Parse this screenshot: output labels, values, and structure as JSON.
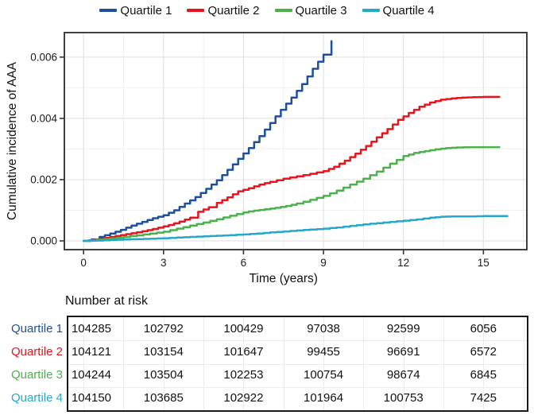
{
  "chart_data": {
    "type": "line",
    "title": "",
    "xlabel": "Time (years)",
    "ylabel": "Cumulative incidence of AAA",
    "xlim": [
      -0.72,
      16.63
    ],
    "ylim": [
      -0.000285,
      0.0068
    ],
    "x_ticks": [
      0,
      3,
      6,
      9,
      12,
      15
    ],
    "x_tick_labels": [
      "0",
      "3",
      "6",
      "9",
      "12",
      "15"
    ],
    "y_ticks": [
      0,
      0.002,
      0.004,
      0.006
    ],
    "y_tick_labels": [
      "0.000",
      "0.002",
      "0.004",
      "0.006"
    ],
    "grid": true,
    "legend_position": "top",
    "series": [
      {
        "name": "Quartile 1",
        "color": "#1c4f9f",
        "points": [
          [
            0,
            0
          ],
          [
            0.3,
            5e-05
          ],
          [
            0.6,
            0.00013
          ],
          [
            1,
            0.00024
          ],
          [
            1.4,
            0.00036
          ],
          [
            1.8,
            0.0005
          ],
          [
            2.2,
            0.00062
          ],
          [
            2.6,
            0.00074
          ],
          [
            3,
            0.00084
          ],
          [
            3.4,
            0.001
          ],
          [
            3.8,
            0.00122
          ],
          [
            4.2,
            0.00143
          ],
          [
            4.6,
            0.0017
          ],
          [
            5,
            0.00198
          ],
          [
            5.4,
            0.00232
          ],
          [
            5.8,
            0.00268
          ],
          [
            6.2,
            0.00303
          ],
          [
            6.6,
            0.00342
          ],
          [
            7,
            0.00385
          ],
          [
            7.4,
            0.00428
          ],
          [
            7.8,
            0.00468
          ],
          [
            8.2,
            0.00512
          ],
          [
            8.6,
            0.00562
          ],
          [
            9,
            0.00608
          ],
          [
            9.3,
            0.00652
          ]
        ]
      },
      {
        "name": "Quartile 2",
        "color": "#e8131d",
        "points": [
          [
            0,
            0
          ],
          [
            0.4,
            4e-05
          ],
          [
            0.8,
            0.0001
          ],
          [
            1.2,
            0.00016
          ],
          [
            1.6,
            0.00022
          ],
          [
            2,
            0.00028
          ],
          [
            2.4,
            0.00035
          ],
          [
            2.8,
            0.00043
          ],
          [
            3.2,
            0.00052
          ],
          [
            3.6,
            0.00063
          ],
          [
            4,
            0.00076
          ],
          [
            4.3,
            0.00095
          ],
          [
            4.7,
            0.0011
          ],
          [
            5,
            0.00124
          ],
          [
            5.4,
            0.00142
          ],
          [
            5.8,
            0.00162
          ],
          [
            6.2,
            0.00172
          ],
          [
            6.6,
            0.00184
          ],
          [
            7,
            0.00193
          ],
          [
            7.5,
            0.00203
          ],
          [
            8,
            0.00211
          ],
          [
            8.5,
            0.00219
          ],
          [
            9,
            0.00228
          ],
          [
            9.4,
            0.00242
          ],
          [
            9.8,
            0.00262
          ],
          [
            10.2,
            0.00285
          ],
          [
            10.6,
            0.0031
          ],
          [
            11,
            0.00338
          ],
          [
            11.4,
            0.00365
          ],
          [
            11.8,
            0.00395
          ],
          [
            12.2,
            0.00418
          ],
          [
            12.6,
            0.00438
          ],
          [
            13,
            0.00452
          ],
          [
            13.4,
            0.00461
          ],
          [
            13.8,
            0.00465
          ],
          [
            14.2,
            0.00468
          ],
          [
            14.6,
            0.00469
          ],
          [
            15,
            0.0047
          ],
          [
            15.6,
            0.0047
          ]
        ]
      },
      {
        "name": "Quartile 3",
        "color": "#4cb04c",
        "points": [
          [
            0,
            0
          ],
          [
            0.5,
            4e-05
          ],
          [
            1,
            8e-05
          ],
          [
            1.5,
            0.00013
          ],
          [
            2,
            0.00018
          ],
          [
            2.5,
            0.00024
          ],
          [
            3,
            0.0003
          ],
          [
            3.5,
            0.0004
          ],
          [
            4,
            0.0005
          ],
          [
            4.5,
            0.0006
          ],
          [
            5,
            0.00071
          ],
          [
            5.5,
            0.00082
          ],
          [
            6,
            0.00093
          ],
          [
            6.4,
            0.00099
          ],
          [
            6.8,
            0.00103
          ],
          [
            7.2,
            0.00108
          ],
          [
            7.6,
            0.00114
          ],
          [
            8,
            0.00122
          ],
          [
            8.5,
            0.00134
          ],
          [
            9,
            0.00147
          ],
          [
            9.5,
            0.00164
          ],
          [
            10,
            0.00184
          ],
          [
            10.5,
            0.00203
          ],
          [
            11,
            0.00226
          ],
          [
            11.5,
            0.00252
          ],
          [
            12,
            0.00277
          ],
          [
            12.4,
            0.00287
          ],
          [
            12.8,
            0.00293
          ],
          [
            13.2,
            0.00299
          ],
          [
            13.6,
            0.00303
          ],
          [
            14,
            0.00305
          ],
          [
            14.5,
            0.00306
          ],
          [
            15,
            0.00306
          ],
          [
            15.6,
            0.00306
          ]
        ]
      },
      {
        "name": "Quartile 4",
        "color": "#25a8c9",
        "points": [
          [
            0,
            0
          ],
          [
            0.5,
            1e-05
          ],
          [
            1,
            3e-05
          ],
          [
            1.5,
            5e-05
          ],
          [
            2,
            6e-05
          ],
          [
            2.5,
            7e-05
          ],
          [
            3,
            9e-05
          ],
          [
            3.5,
            0.00011
          ],
          [
            4,
            0.00013
          ],
          [
            4.5,
            0.00015
          ],
          [
            5,
            0.00017
          ],
          [
            5.5,
            0.00019
          ],
          [
            6,
            0.00021
          ],
          [
            6.5,
            0.00024
          ],
          [
            7,
            0.00028
          ],
          [
            7.5,
            0.00031
          ],
          [
            8,
            0.00034
          ],
          [
            8.5,
            0.00037
          ],
          [
            9,
            0.0004
          ],
          [
            9.5,
            0.00044
          ],
          [
            10,
            0.00049
          ],
          [
            10.5,
            0.00054
          ],
          [
            11,
            0.00058
          ],
          [
            11.5,
            0.00062
          ],
          [
            12,
            0.00066
          ],
          [
            12.5,
            0.0007
          ],
          [
            13,
            0.00076
          ],
          [
            13.4,
            0.00079
          ],
          [
            14,
            0.0008
          ],
          [
            14.5,
            0.0008
          ],
          [
            15,
            0.00081
          ],
          [
            15.9,
            0.00081
          ]
        ]
      }
    ]
  },
  "risk_table": {
    "title": "Number at risk",
    "time_points": [
      0,
      3,
      6,
      9,
      12,
      15
    ],
    "rows": [
      {
        "label": "Quartile 1",
        "color": "#1c4f9f",
        "values": [
          "104285",
          "102792",
          "100429",
          "97038",
          "92599",
          "6056"
        ]
      },
      {
        "label": "Quartile 2",
        "color": "#e8131d",
        "values": [
          "104121",
          "103154",
          "101647",
          "99455",
          "96691",
          "6572"
        ]
      },
      {
        "label": "Quartile 3",
        "color": "#4cb04c",
        "values": [
          "104244",
          "103504",
          "102253",
          "100754",
          "98674",
          "6845"
        ]
      },
      {
        "label": "Quartile 4",
        "color": "#25a8c9",
        "values": [
          "104150",
          "103685",
          "102922",
          "101964",
          "100753",
          "7425"
        ]
      }
    ]
  }
}
